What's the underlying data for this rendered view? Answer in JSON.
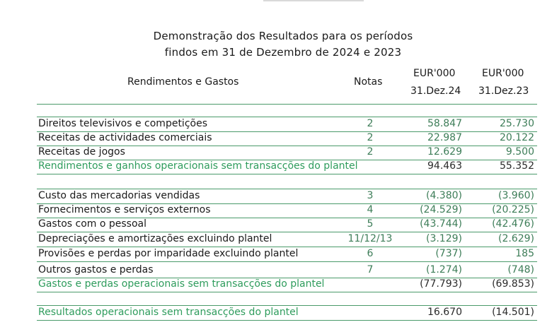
{
  "title": {
    "line1": "Demonstração dos Resultados para os períodos",
    "line2": "findos em 31 de Dezembro de 2024 e 2023"
  },
  "header": {
    "label": "Rendimentos e Gastos",
    "notas": "Notas",
    "col1_currency": "EUR'000",
    "col2_currency": "EUR'000",
    "col1_date": "31.Dez.24",
    "col2_date": "31.Dez.23"
  },
  "section1": [
    {
      "label": "Direitos televisivos e competições",
      "nota": "2",
      "v1": "58.847",
      "v2": "25.730"
    },
    {
      "label": "Receitas de actividades comerciais",
      "nota": "2",
      "v1": "22.987",
      "v2": "20.122"
    },
    {
      "label": "Receitas de jogos",
      "nota": "2",
      "v1": "12.629",
      "v2": "9.500"
    }
  ],
  "total1": {
    "label": "Rendimentos e ganhos operacionais sem transacções do plantel",
    "v1": "94.463",
    "v2": "55.352"
  },
  "section2": [
    {
      "label": "Custo das mercadorias vendidas",
      "nota": "3",
      "v1": "(4.380)",
      "v2": "(3.960)"
    },
    {
      "label": "Fornecimentos e serviços externos",
      "nota": "4",
      "v1": "(24.529)",
      "v2": "(20.225)"
    },
    {
      "label": "Gastos com o pessoal",
      "nota": "5",
      "v1": "(43.744)",
      "v2": "(42.476)"
    },
    {
      "label": "Depreciações e amortizações excluindo plantel",
      "nota": "11/12/13",
      "v1": "(3.129)",
      "v2": "(2.629)"
    },
    {
      "label": "Provisões e perdas por imparidade excluindo plantel",
      "nota": "6",
      "v1": "(737)",
      "v2": "185"
    },
    {
      "label": "Outros gastos e perdas",
      "nota": "7",
      "v1": "(1.274)",
      "v2": "(748)"
    }
  ],
  "total2": {
    "label": "Gastos e perdas operacionais sem transacções do plantel",
    "v1": "(77.793)",
    "v2": "(69.853)"
  },
  "total3": {
    "label": "Resultados operacionais sem transacções do plantel",
    "v1": "16.670",
    "v2": "(14.501)"
  }
}
